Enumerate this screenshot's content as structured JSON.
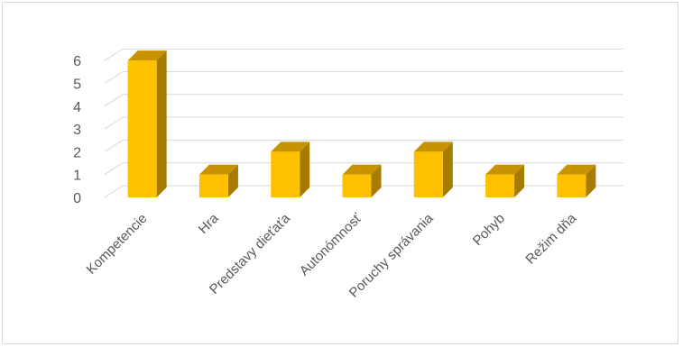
{
  "chart_data": {
    "type": "bar",
    "style": "3d-column",
    "categories": [
      "Kompetencie",
      "Hra",
      "Predstavy dieťaťa",
      "Autonómnosť",
      "Poruchy správania",
      "Pohyb",
      "Režim dňa"
    ],
    "values": [
      6,
      1,
      2,
      1,
      2,
      1,
      1
    ],
    "title": "",
    "xlabel": "",
    "ylabel": "",
    "ylim": [
      0,
      6
    ],
    "yticks": [
      0,
      1,
      2,
      3,
      4,
      5,
      6
    ],
    "grid": true,
    "legend": "none",
    "colors": {
      "bar_front": "#FFC000",
      "bar_side": "#A67C00",
      "bar_top": "#C79300",
      "grid": "#d9d9d9",
      "text": "#595959"
    }
  }
}
